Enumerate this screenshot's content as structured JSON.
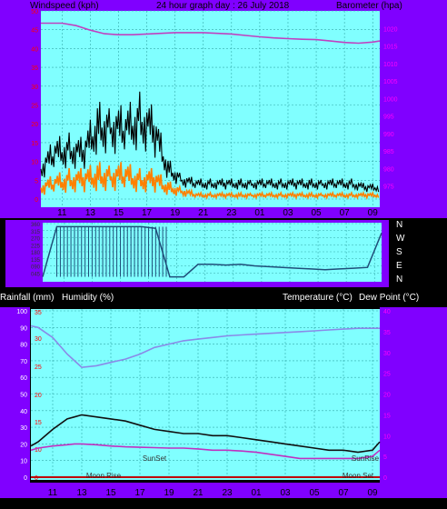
{
  "header": {
    "windspeed_label": "Windspeed (kph)",
    "title": "24 hour graph day : 26 July 2018",
    "barometer_label": "Barometer (hpa)"
  },
  "middle_header": {
    "rainfall_label": "Rainfall (mm)",
    "humidity_label": "Humidity (%)",
    "temp_label": "Temperature (°C)",
    "dew_label": "Dew Point (°C)"
  },
  "colors": {
    "panel_bg": "#80FFFF",
    "frame": "#8000FF",
    "wind_gust": "#000000",
    "wind_avg": "#FF8000",
    "barometer": "#C040C0",
    "direction": "#1F4E79",
    "humidity": "#8A8AE8",
    "temperature": "#101010",
    "dew_point": "#C030C0",
    "rain": "#C00000",
    "right_scale_text": "#FF00FF",
    "left_scale_text": "#FF0000"
  },
  "chart_data": [
    {
      "type": "line",
      "name": "wind-barometer",
      "x_ticks": [
        "11",
        "13",
        "15",
        "17",
        "19",
        "21",
        "23",
        "01",
        "03",
        "05",
        "07",
        "09"
      ],
      "ylabel_left": "Windspeed (kph)",
      "ylim_left": [
        0,
        50
      ],
      "yticks_left": [
        "0",
        "5",
        "10",
        "15",
        "20",
        "25",
        "30",
        "35",
        "40",
        "45",
        "50"
      ],
      "ylabel_right": "Barometer (hpa)",
      "ylim_right": [
        970,
        1025
      ],
      "yticks_right": [
        "975",
        "980",
        "985",
        "990",
        "995",
        "1000",
        "1005",
        "1010",
        "1015",
        "1020"
      ],
      "grid": true,
      "series": [
        {
          "kind": "gust",
          "axis": "left",
          "x": [
            9.5,
            10.5,
            11.5,
            12.5,
            13.5,
            14.5,
            15.5,
            16.5,
            17.5,
            18.5,
            19.5,
            20.5,
            21.5,
            22.5,
            23.5,
            24.5,
            25.5,
            26.5,
            27.5,
            28.5,
            29.5,
            30.5,
            31.5,
            32.5,
            33.5
          ],
          "values": [
            8,
            12,
            13,
            12,
            19,
            19,
            18,
            21,
            18,
            8,
            5,
            4,
            4,
            4,
            4,
            4,
            4,
            4,
            4,
            4,
            4,
            4,
            4,
            3,
            3
          ]
        },
        {
          "kind": "average",
          "axis": "left",
          "x": [
            9.5,
            10.5,
            11.5,
            12.5,
            13.5,
            14.5,
            15.5,
            16.5,
            17.5,
            18.5,
            19.5,
            20.5,
            21.5,
            22.5,
            23.5,
            24.5,
            25.5,
            26.5,
            27.5,
            28.5,
            29.5,
            30.5,
            31.5,
            32.5,
            33.5
          ],
          "values": [
            3,
            4,
            5,
            5,
            6,
            6,
            6,
            5,
            5,
            3,
            2,
            1,
            1,
            1,
            1,
            1,
            1,
            1,
            1,
            1,
            1,
            1,
            1,
            1,
            1
          ]
        },
        {
          "kind": "barometer",
          "axis": "right",
          "x": [
            9.5,
            10,
            11,
            12,
            13,
            14,
            15,
            16,
            17,
            18,
            19,
            20,
            21,
            22,
            23,
            24,
            25,
            26,
            27,
            28,
            29,
            30,
            31,
            32,
            33,
            33.5
          ],
          "values": [
            1021.5,
            1021.5,
            1021.5,
            1020.8,
            1019.5,
            1018.5,
            1018.2,
            1018.2,
            1018.4,
            1018.6,
            1018.8,
            1018.8,
            1018.8,
            1018.6,
            1018.4,
            1018.0,
            1017.6,
            1017.3,
            1017.1,
            1016.9,
            1016.8,
            1016.4,
            1016.0,
            1015.8,
            1016.1,
            1016.4
          ]
        }
      ]
    },
    {
      "type": "line",
      "name": "wind-direction",
      "x_ticks": [
        "11",
        "13",
        "15",
        "17",
        "19",
        "21",
        "23",
        "01",
        "03",
        "05",
        "07",
        "09"
      ],
      "ylim": [
        0,
        360
      ],
      "yticks": [
        "045",
        "090",
        "135",
        "180",
        "225",
        "270",
        "315",
        "360"
      ],
      "compass_labels": [
        "N",
        "W",
        "S",
        "E",
        "N"
      ],
      "grid": true,
      "series": [
        {
          "kind": "direction",
          "x": [
            9.5,
            10.5,
            11.5,
            12.5,
            13.5,
            14.5,
            15.5,
            16.5,
            17.5,
            18.5,
            19.5,
            20.5,
            21.5,
            22.5,
            23.5,
            24.5,
            25.5,
            26.5,
            27.5,
            28.5,
            29.5,
            30.5,
            31.5,
            32.5,
            33.5
          ],
          "values": [
            20,
            340,
            340,
            340,
            340,
            340,
            340,
            340,
            330,
            20,
            20,
            100,
            100,
            95,
            100,
            90,
            85,
            80,
            75,
            70,
            65,
            70,
            75,
            80,
            300
          ]
        }
      ]
    },
    {
      "type": "line",
      "name": "temperature-humidity",
      "x_ticks": [
        "11",
        "13",
        "15",
        "17",
        "19",
        "21",
        "23",
        "01",
        "03",
        "05",
        "07",
        "09"
      ],
      "ylabel_left": "Rainfall (mm) Humidity (%)",
      "ylim_left": [
        0,
        100
      ],
      "yticks_left": [
        "0",
        "10",
        "20",
        "30",
        "40",
        "50",
        "60",
        "70",
        "80",
        "90",
        "100"
      ],
      "yticks_rain": [
        "0",
        "10",
        "15",
        "20",
        "25",
        "30",
        "35"
      ],
      "ylabel_right": "Temperature (°C) Dew Point (°C)",
      "ylim_right": [
        0,
        40
      ],
      "yticks_right": [
        "0",
        "5",
        "10",
        "15",
        "20",
        "25",
        "30",
        "35",
        "40"
      ],
      "annotations": [
        "SunSet",
        "SunRise",
        "Moon Rise",
        "Moon Set"
      ],
      "grid": true,
      "series": [
        {
          "kind": "humidity",
          "axis": "left",
          "x": [
            9.5,
            10,
            11,
            12,
            12.5,
            13,
            14,
            15,
            16,
            17,
            18,
            19,
            20,
            21,
            22,
            23,
            24,
            25,
            26,
            27,
            28,
            29,
            30,
            31,
            32,
            33,
            33.5
          ],
          "values": [
            91,
            90,
            84,
            74,
            70,
            66,
            67,
            69,
            71,
            74,
            78,
            80,
            82,
            83,
            84,
            85,
            85.5,
            86,
            86.5,
            87,
            87.5,
            88,
            88.5,
            89,
            89.5,
            89.5,
            89.5
          ]
        },
        {
          "kind": "temperature",
          "axis": "right",
          "x": [
            9.5,
            10,
            11,
            12,
            12.5,
            13,
            14,
            15,
            16,
            17,
            18,
            19,
            20,
            21,
            22,
            23,
            24,
            25,
            26,
            27,
            28,
            29,
            30,
            31,
            32,
            33,
            33.5
          ],
          "values": [
            7.5,
            8.5,
            11.5,
            14,
            14.5,
            15,
            14.5,
            14,
            13.5,
            12.5,
            11.5,
            11,
            10.5,
            10.5,
            10,
            10,
            9.5,
            9,
            8.5,
            8,
            7.5,
            7,
            6.5,
            6.5,
            6,
            6.5,
            8.5
          ]
        },
        {
          "kind": "dew_point",
          "axis": "right",
          "x": [
            9.5,
            10,
            11,
            12,
            12.5,
            13,
            14,
            15,
            16,
            17,
            18,
            19,
            20,
            21,
            22,
            23,
            24,
            25,
            26,
            27,
            28,
            29,
            30,
            31,
            32,
            33,
            33.5
          ],
          "values": [
            6.5,
            7,
            7.5,
            7.8,
            8,
            8,
            7.8,
            7.5,
            7.3,
            7.2,
            7.1,
            7,
            7,
            6.8,
            6.5,
            6.5,
            6.3,
            6,
            5.5,
            5,
            4.5,
            4.5,
            4.5,
            4.5,
            4.5,
            5,
            6.5
          ]
        },
        {
          "kind": "rainfall",
          "axis": "left",
          "x": [
            9.5,
            33.5
          ],
          "values": [
            0,
            0
          ]
        }
      ]
    }
  ]
}
